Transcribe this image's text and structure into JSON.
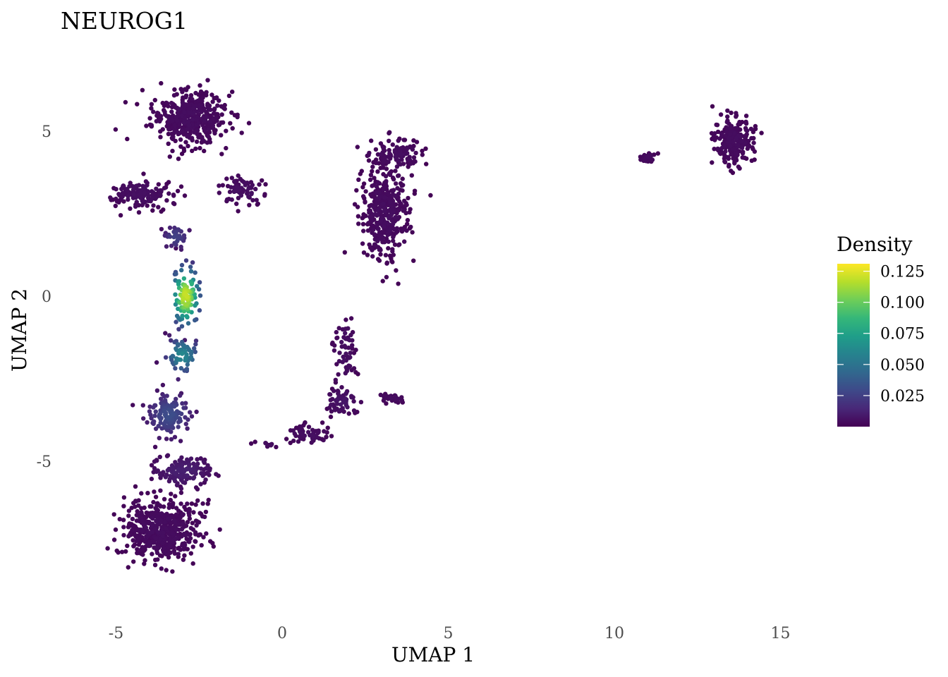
{
  "chart_data": {
    "type": "scatter",
    "title": "NEUROG1",
    "xlabel": "UMAP 1",
    "ylabel": "UMAP 2",
    "xlim": [
      -6.8,
      17
    ],
    "ylim": [
      -9.6,
      7.2
    ],
    "xticks": [
      -5,
      0,
      5,
      10,
      15
    ],
    "xtick_labels": [
      "-5",
      "0",
      "5",
      "10",
      "15"
    ],
    "yticks": [
      5,
      0,
      -5
    ],
    "ytick_labels": [
      "5",
      "0",
      "-5"
    ],
    "grid": false,
    "color_variable": "Density",
    "colormap": "viridis",
    "colorbar": {
      "title": "Density",
      "min": 0,
      "max": 0.131,
      "ticks": [
        0.125,
        0.1,
        0.075,
        0.05,
        0.025
      ],
      "tick_labels": [
        "0.125",
        "0.100",
        "0.075",
        "0.050",
        "0.025"
      ],
      "position": "right"
    },
    "colormap_stops": [
      "#440154",
      "#482878",
      "#3e4989",
      "#31688e",
      "#26828e",
      "#1f9e89",
      "#35b779",
      "#6ece58",
      "#b5de2b",
      "#fde725"
    ],
    "clusters": [
      {
        "name": "upper-left mushroom cap",
        "center": [
          -2.8,
          5.4
        ],
        "spread": [
          1.0,
          0.75
        ],
        "count": 420,
        "density": 0.003
      },
      {
        "name": "upper-left lobe",
        "center": [
          -4.3,
          3.1
        ],
        "spread": [
          0.9,
          0.35
        ],
        "count": 160,
        "density": 0.004
      },
      {
        "name": "upper-left right lobe",
        "center": [
          -1.2,
          3.2
        ],
        "spread": [
          0.7,
          0.4
        ],
        "count": 70,
        "density": 0.004
      },
      {
        "name": "stem upper",
        "center": [
          -3.2,
          1.8
        ],
        "spread": [
          0.35,
          0.35
        ],
        "count": 35,
        "density": 0.025
      },
      {
        "name": "stem hotspot",
        "center": [
          -2.9,
          0.0
        ],
        "spread": [
          0.35,
          0.75
        ],
        "count": 110,
        "density": 0.12
      },
      {
        "name": "stem lower",
        "center": [
          -3.0,
          -1.8
        ],
        "spread": [
          0.45,
          0.5
        ],
        "count": 60,
        "density": 0.06
      },
      {
        "name": "lower stem",
        "center": [
          -3.4,
          -3.6
        ],
        "spread": [
          0.6,
          0.6
        ],
        "count": 130,
        "density": 0.03
      },
      {
        "name": "lower-left blob",
        "center": [
          -3.6,
          -7.1
        ],
        "spread": [
          1.0,
          0.85
        ],
        "count": 520,
        "density": 0.003
      },
      {
        "name": "lower-left mid",
        "center": [
          -3.0,
          -5.3
        ],
        "spread": [
          0.8,
          0.45
        ],
        "count": 130,
        "density": 0.01
      },
      {
        "name": "right upper arm",
        "center": [
          3.1,
          2.5
        ],
        "spread": [
          0.65,
          1.25
        ],
        "count": 380,
        "density": 0.003
      },
      {
        "name": "right arm top",
        "center": [
          3.4,
          4.3
        ],
        "spread": [
          0.7,
          0.45
        ],
        "count": 110,
        "density": 0.003
      },
      {
        "name": "descending arm",
        "center": [
          1.9,
          -1.6
        ],
        "spread": [
          0.3,
          1.0
        ],
        "count": 60,
        "density": 0.004
      },
      {
        "name": "branch junction",
        "center": [
          1.8,
          -3.2
        ],
        "spread": [
          0.45,
          0.35
        ],
        "count": 60,
        "density": 0.006
      },
      {
        "name": "lower arm",
        "center": [
          0.8,
          -4.2
        ],
        "spread": [
          0.6,
          0.25
        ],
        "count": 60,
        "density": 0.004
      },
      {
        "name": "far left tail",
        "center": [
          -0.5,
          -4.5
        ],
        "spread": [
          0.4,
          0.1
        ],
        "count": 10,
        "density": 0.003
      },
      {
        "name": "side branch",
        "center": [
          3.3,
          -3.1
        ],
        "spread": [
          0.5,
          0.15
        ],
        "count": 25,
        "density": 0.003
      },
      {
        "name": "small island",
        "center": [
          11.0,
          4.2
        ],
        "spread": [
          0.25,
          0.12
        ],
        "count": 30,
        "density": 0.003
      },
      {
        "name": "far right cluster",
        "center": [
          13.6,
          4.7
        ],
        "spread": [
          0.5,
          0.6
        ],
        "count": 210,
        "density": 0.003
      }
    ]
  }
}
